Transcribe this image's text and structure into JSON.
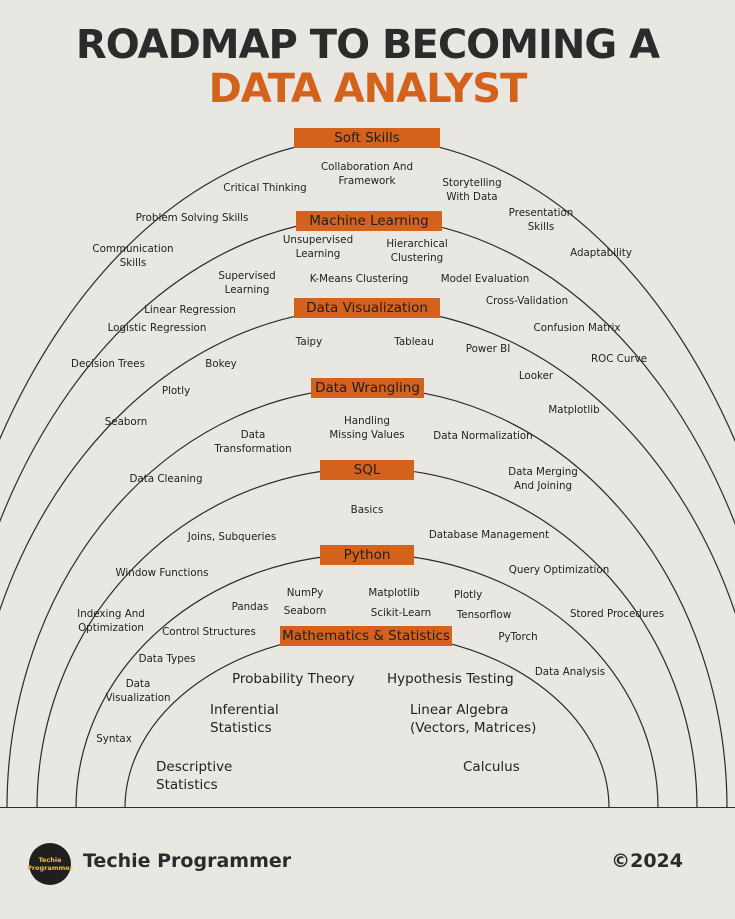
{
  "header": {
    "title_line1": "ROADMAP TO BECOMING A",
    "title_line2": "DATA ANALYST"
  },
  "sections": [
    {
      "name": "Soft Skills",
      "items": [
        "Collaboration And\nFramework",
        "Critical Thinking",
        "Storytelling\nWith Data",
        "Problem Solving Skills",
        "Presentation\nSkills",
        "Communication\nSkills",
        "Adaptability"
      ]
    },
    {
      "name": "Machine Learning",
      "items": [
        "Unsupervised\nLearning",
        "Hierarchical\nClustering",
        "Supervised\nLearning",
        "K-Means Clustering",
        "Model Evaluation",
        "Cross-Validation",
        "Linear Regression",
        "Logistic Regression",
        "Confusion Matrix",
        "Decision Trees",
        "ROC Curve"
      ]
    },
    {
      "name": "Data Visualization",
      "items": [
        "Taipy",
        "Tableau",
        "Power BI",
        "Bokey",
        "Looker",
        "Plotly",
        "Matplotlib",
        "Seaborn"
      ]
    },
    {
      "name": "Data Wrangling",
      "items": [
        "Handling\nMissing Values",
        "Data\nTransformation",
        "Data Normalization",
        "Data Merging\nAnd Joining",
        "Data Cleaning"
      ]
    },
    {
      "name": "SQL",
      "items": [
        "Basics",
        "Joins, Subqueries",
        "Database Management",
        "Window Functions",
        "Query Optimization",
        "Indexing And\nOptimization",
        "Stored Procedures"
      ]
    },
    {
      "name": "Python",
      "items": [
        "NumPy",
        "Matplotlib",
        "Plotly",
        "Pandas",
        "Seaborn",
        "Scikit-Learn",
        "Tensorflow",
        "Control Structures",
        "PyTorch",
        "Data Types",
        "Data Analysis",
        "Data\nVisualization",
        "Syntax"
      ]
    },
    {
      "name": "Mathematics & Statistics",
      "items": [
        "Probability Theory",
        "Hypothesis Testing",
        "Inferential\nStatistics",
        "Linear Algebra\n(Vectors, Matrices)",
        "Descriptive\nStatistics",
        "Calculus"
      ]
    }
  ],
  "footer": {
    "logo_text": "Techie\nProgrammer",
    "brand": "Techie Programmer",
    "year": "©2024"
  }
}
